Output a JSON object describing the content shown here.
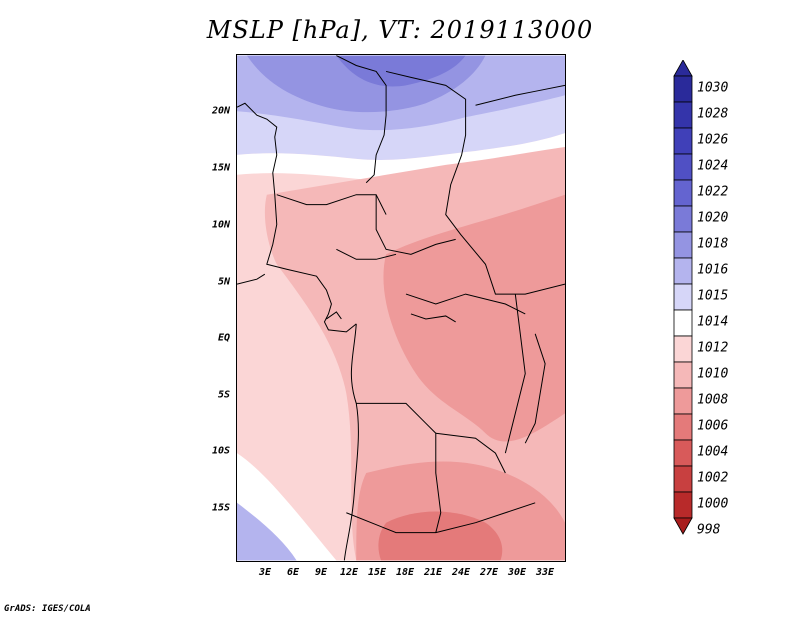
{
  "title": "MSLP [hPa], VT: 2019113000",
  "credit": "GrADS: IGES/COLA",
  "map": {
    "lat_labels": [
      "20N",
      "15N",
      "10N",
      "5N",
      "EQ",
      "5S",
      "10S",
      "15S"
    ],
    "lon_labels": [
      "3E",
      "6E",
      "9E",
      "12E",
      "15E",
      "18E",
      "21E",
      "24E",
      "27E",
      "30E",
      "33E"
    ]
  },
  "colorbar": {
    "levels": [
      "1030",
      "1028",
      "1026",
      "1024",
      "1022",
      "1020",
      "1018",
      "1016",
      "1015",
      "1014",
      "1012",
      "1010",
      "1008",
      "1006",
      "1004",
      "1002",
      "1000",
      "998"
    ],
    "colors": [
      "#2a2a9a",
      "#3434aa",
      "#4040b8",
      "#5050c4",
      "#6464d0",
      "#7a7ad8",
      "#9494e2",
      "#b4b4ee",
      "#d6d6f8",
      "#ffffff",
      "#fbd6d6",
      "#f5b8b8",
      "#ee9a9a",
      "#e47a7a",
      "#d85a5a",
      "#c84040",
      "#b82a2a",
      "#a81c1c"
    ]
  }
}
